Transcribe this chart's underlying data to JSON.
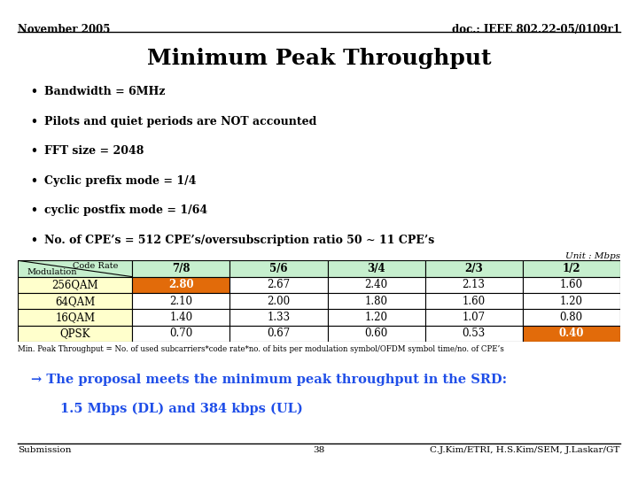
{
  "header_left": "November 2005",
  "header_right": "doc.: IEEE 802.22-05/0109r1",
  "title": "Minimum Peak Throughput",
  "bullets": [
    "Bandwidth = 6MHz",
    "Pilots and quiet periods are NOT accounted",
    "FFT size = 2048",
    "Cyclic prefix mode = 1/4",
    "cyclic postfix mode = 1/64",
    "No. of CPE’s = 512 CPE’s/oversubscription ratio 50 ~ 11 CPE’s"
  ],
  "unit_label": "Unit : Mbps",
  "table_col_headers": [
    "7/8",
    "5/6",
    "3/4",
    "2/3",
    "1/2"
  ],
  "table_row_headers": [
    "256QAM",
    "64QAM",
    "16QAM",
    "QPSK"
  ],
  "table_data": [
    [
      2.8,
      2.67,
      2.4,
      2.13,
      1.6
    ],
    [
      2.1,
      2.0,
      1.8,
      1.6,
      1.2
    ],
    [
      1.4,
      1.33,
      1.2,
      1.07,
      0.8
    ],
    [
      0.7,
      0.67,
      0.6,
      0.53,
      0.4
    ]
  ],
  "highlight_orange": [
    [
      0,
      0
    ],
    [
      3,
      4
    ]
  ],
  "col_header_bg": "#c6efce",
  "row_header_bg": "#ffffcc",
  "cell_bg": "#ffffff",
  "orange_color": "#e26b0a",
  "formula_text": "Min. Peak Throughput = No. of used subcarriers*code rate*no. of bits per modulation symbol/OFDM symbol time/no. of CPE’s",
  "arrow_text": "→ The proposal meets the minimum peak throughput in the SRD:",
  "arrow_text2": "1.5 Mbps (DL) and 384 kbps (UL)",
  "footer_left": "Submission",
  "footer_center": "38",
  "footer_right": "C.J.Kim/ETRI, H.S.Kim/SEM, J.Laskar/GT",
  "bg_color": "#ffffff",
  "header_line_color": "#000000",
  "footer_line_color": "#000000",
  "blue_text_color": "#1f4ee8",
  "table_border_color": "#000000",
  "diag_label_top": "Code Rate",
  "diag_label_bottom": "Modulation"
}
